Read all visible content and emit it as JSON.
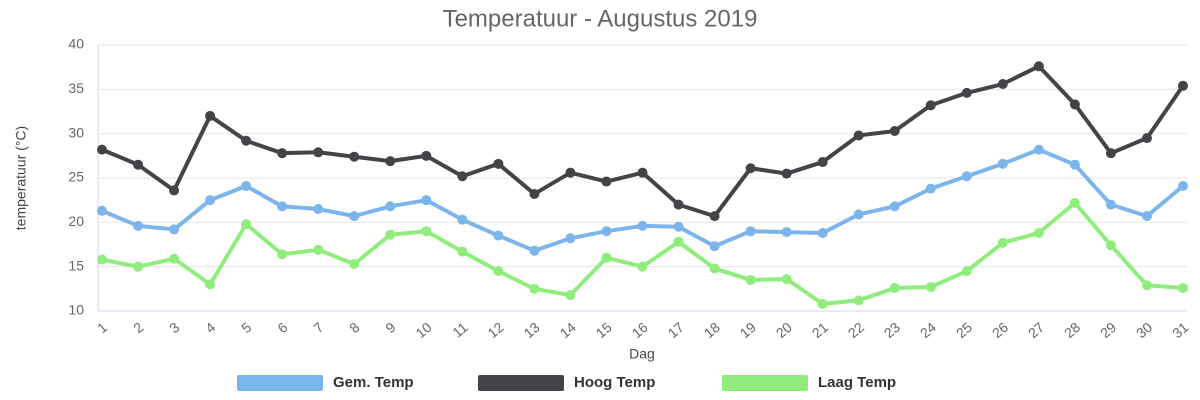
{
  "chart_data": {
    "type": "line",
    "title": "Temperatuur - Augustus 2019",
    "x_label": "Dag",
    "y_label": "temperatuur (°C)",
    "categories": [
      "1",
      "2",
      "3",
      "4",
      "5",
      "6",
      "7",
      "8",
      "9",
      "10",
      "11",
      "12",
      "13",
      "14",
      "15",
      "16",
      "17",
      "18",
      "19",
      "20",
      "21",
      "22",
      "23",
      "24",
      "25",
      "26",
      "27",
      "28",
      "29",
      "30",
      "31"
    ],
    "series": [
      {
        "name": "Gem. Temp",
        "color": "#7cb5ec",
        "values": [
          21.3,
          19.6,
          19.2,
          22.5,
          24.1,
          21.8,
          21.5,
          20.7,
          21.8,
          22.5,
          20.3,
          18.5,
          16.8,
          18.2,
          19.0,
          19.6,
          19.5,
          17.3,
          19.0,
          18.9,
          18.8,
          20.9,
          21.8,
          23.8,
          25.2,
          26.6,
          28.2,
          26.5,
          22.0,
          20.7,
          24.1
        ]
      },
      {
        "name": "Hoog Temp",
        "color": "#434348",
        "values": [
          28.2,
          26.5,
          23.6,
          32.0,
          29.2,
          27.8,
          27.9,
          27.4,
          26.9,
          27.5,
          25.2,
          26.6,
          23.2,
          25.6,
          24.6,
          25.6,
          22.0,
          20.7,
          26.1,
          25.5,
          26.8,
          29.8,
          30.3,
          33.2,
          34.6,
          35.6,
          37.6,
          33.3,
          27.8,
          29.5,
          35.4
        ]
      },
      {
        "name": "Laag Temp",
        "color": "#90ed7d",
        "values": [
          15.8,
          15.0,
          15.9,
          13.0,
          19.8,
          16.4,
          16.9,
          15.3,
          18.6,
          19.0,
          16.7,
          14.5,
          12.5,
          11.8,
          16.0,
          15.0,
          17.8,
          14.8,
          13.5,
          13.6,
          10.8,
          11.2,
          12.6,
          12.7,
          14.5,
          17.7,
          18.8,
          22.2,
          17.4,
          12.9,
          12.6
        ]
      }
    ],
    "ylim": [
      10,
      40
    ],
    "yticks": [
      10,
      15,
      20,
      25,
      30,
      35,
      40
    ],
    "grid": true
  }
}
